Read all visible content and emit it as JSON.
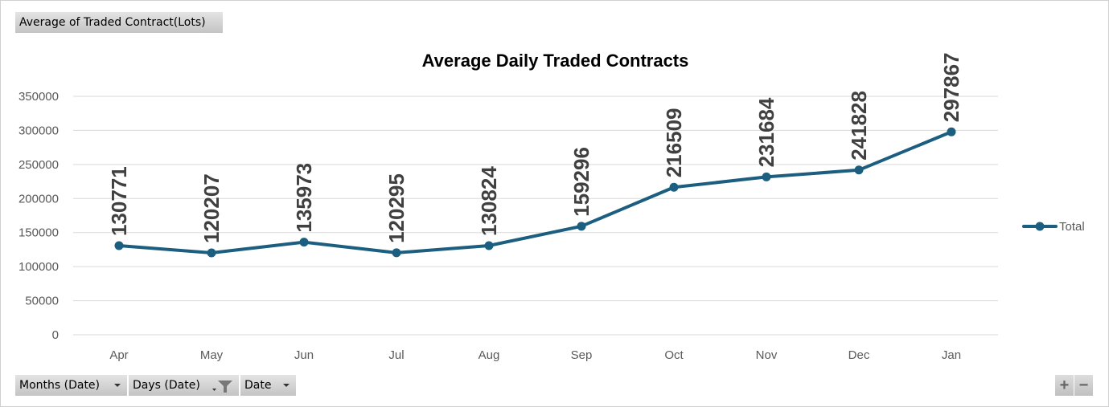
{
  "value_field": "Average of Traded Contract(Lots)",
  "filters": [
    {
      "label": "Months (Date)",
      "icon": "dropdown-arrow-icon"
    },
    {
      "label": "Days (Date)",
      "icon": "filter-icon"
    },
    {
      "label": "Date",
      "icon": "dropdown-arrow-icon"
    }
  ],
  "zoom": {
    "plus": "+",
    "minus": "−"
  },
  "chart_data": {
    "type": "line",
    "title": "Average Daily Traded Contracts",
    "categories": [
      "Apr",
      "May",
      "Jun",
      "Jul",
      "Aug",
      "Sep",
      "Oct",
      "Nov",
      "Dec",
      "Jan"
    ],
    "series": [
      {
        "name": "Total",
        "color": "#1b5e7f",
        "values": [
          130771,
          120207,
          135973,
          120295,
          130824,
          159296,
          216509,
          231684,
          241828,
          297867
        ]
      }
    ],
    "yticks": [
      0,
      50000,
      100000,
      150000,
      200000,
      250000,
      300000,
      350000
    ],
    "ylim": [
      0,
      350000
    ],
    "grid": true,
    "legend": "right",
    "xlabel": "",
    "ylabel": ""
  }
}
